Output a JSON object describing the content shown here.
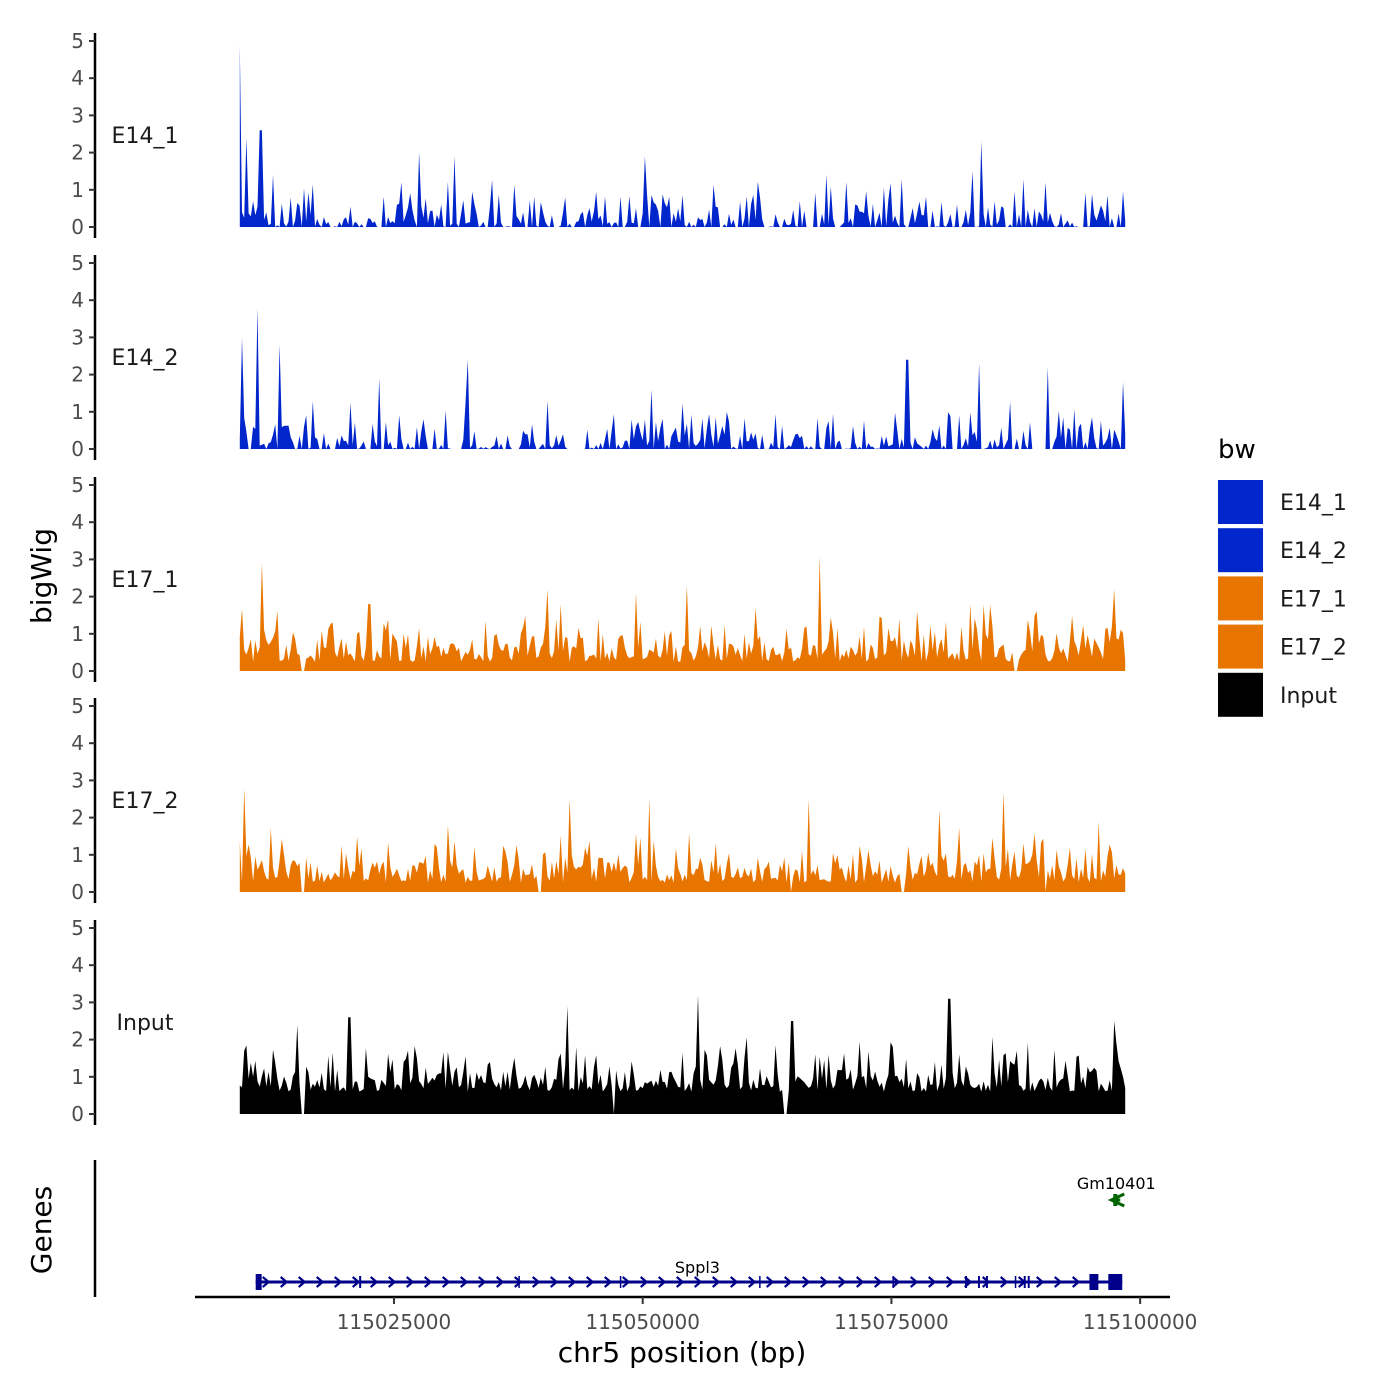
{
  "chart_data": {
    "type": "area",
    "title": "",
    "xlabel": "chr5 position (bp)",
    "ylabel": "bigWig",
    "genes_label": "Genes",
    "xlim": [
      115005000,
      115103000
    ],
    "data_x_range": [
      115009500,
      115098500
    ],
    "x_ticks": [
      115025000,
      115050000,
      115075000,
      115100000
    ],
    "x_tick_labels": [
      "115025000",
      "115050000",
      "115075000",
      "115100000"
    ],
    "ylim": [
      0,
      5
    ],
    "y_ticks": [
      0,
      1,
      2,
      3,
      4,
      5
    ],
    "y_tick_labels": [
      "0",
      "1",
      "2",
      "3",
      "4",
      "5"
    ],
    "legend": {
      "title": "bw",
      "placement": "right",
      "entries": [
        {
          "name": "E14_1",
          "color": "#0026cc"
        },
        {
          "name": "E14_2",
          "color": "#0026cc"
        },
        {
          "name": "E17_1",
          "color": "#e87500"
        },
        {
          "name": "E17_2",
          "color": "#e87500"
        },
        {
          "name": "Input",
          "color": "#000000"
        }
      ]
    },
    "series": [
      {
        "name": "E14_1",
        "color": "#0026cc",
        "n_bins": 400,
        "peaks": [
          {
            "x": 115009550,
            "y": 4.9
          },
          {
            "x": 115010100,
            "y": 2.4
          },
          {
            "x": 115011600,
            "y": 2.6
          },
          {
            "x": 115012800,
            "y": 1.4
          },
          {
            "x": 115027500,
            "y": 2.0
          },
          {
            "x": 115031000,
            "y": 1.9
          },
          {
            "x": 115050200,
            "y": 1.9
          },
          {
            "x": 115068500,
            "y": 1.4
          },
          {
            "x": 115083200,
            "y": 1.5
          },
          {
            "x": 115084000,
            "y": 2.3
          },
          {
            "x": 115090500,
            "y": 1.2
          }
        ],
        "gaps": [
          [
            115015700,
            115015900
          ],
          [
            115058300,
            115058500
          ]
        ]
      },
      {
        "name": "E14_2",
        "color": "#0026cc",
        "n_bins": 400,
        "peaks": [
          {
            "x": 115009700,
            "y": 3.0
          },
          {
            "x": 115011200,
            "y": 3.8
          },
          {
            "x": 115013500,
            "y": 2.8
          },
          {
            "x": 115023600,
            "y": 1.9
          },
          {
            "x": 115032500,
            "y": 2.4
          },
          {
            "x": 115050800,
            "y": 1.6
          },
          {
            "x": 115076600,
            "y": 2.4
          },
          {
            "x": 115083800,
            "y": 2.3
          },
          {
            "x": 115090800,
            "y": 2.2
          },
          {
            "x": 115098200,
            "y": 1.8
          }
        ],
        "gaps": [
          [
            115036800,
            115037600
          ],
          [
            115043000,
            115043300
          ],
          [
            115089000,
            115090600
          ]
        ]
      },
      {
        "name": "E17_1",
        "color": "#e87500",
        "n_bins": 400,
        "peaks": [
          {
            "x": 115011800,
            "y": 2.9
          },
          {
            "x": 115022500,
            "y": 1.8
          },
          {
            "x": 115040500,
            "y": 2.2
          },
          {
            "x": 115049300,
            "y": 2.1
          },
          {
            "x": 115054500,
            "y": 2.3
          },
          {
            "x": 115067800,
            "y": 3.1
          },
          {
            "x": 115083000,
            "y": 1.8
          },
          {
            "x": 115097400,
            "y": 2.2
          }
        ],
        "gaps": [
          [
            115015600,
            115016000
          ],
          [
            115087300,
            115087700
          ]
        ]
      },
      {
        "name": "E17_2",
        "color": "#e87500",
        "n_bins": 400,
        "peaks": [
          {
            "x": 115009900,
            "y": 2.8
          },
          {
            "x": 115030500,
            "y": 1.8
          },
          {
            "x": 115042700,
            "y": 2.5
          },
          {
            "x": 115050700,
            "y": 2.5
          },
          {
            "x": 115066700,
            "y": 2.5
          },
          {
            "x": 115079800,
            "y": 2.2
          },
          {
            "x": 115086200,
            "y": 2.7
          },
          {
            "x": 115095800,
            "y": 1.9
          }
        ],
        "gaps": [
          [
            115015600,
            115016000
          ],
          [
            115039500,
            115039800
          ],
          [
            115064700,
            115065100
          ],
          [
            115076000,
            115076300
          ],
          [
            115090300,
            115090600
          ]
        ]
      },
      {
        "name": "Input",
        "color": "#000000",
        "n_bins": 400,
        "peaks": [
          {
            "x": 115015200,
            "y": 2.4
          },
          {
            "x": 115020500,
            "y": 2.6
          },
          {
            "x": 115042500,
            "y": 2.9
          },
          {
            "x": 115055500,
            "y": 3.2
          },
          {
            "x": 115065000,
            "y": 2.5
          },
          {
            "x": 115080800,
            "y": 3.1
          },
          {
            "x": 115097400,
            "y": 2.5
          }
        ],
        "gaps": [
          [
            115015600,
            115016000
          ],
          [
            115046900,
            115047200
          ],
          [
            115064200,
            115064600
          ]
        ]
      }
    ],
    "genes": [
      {
        "name": "Sppl3",
        "strand": "+",
        "color": "#00008b",
        "start": 115011100,
        "end": 115098200,
        "label_x": 115055500,
        "exons": [
          [
            115011100,
            115011700
          ],
          [
            115021500,
            115021700
          ],
          [
            115037500,
            115037600
          ],
          [
            115047700,
            115047800
          ],
          [
            115061700,
            115061800
          ],
          [
            115075100,
            115075200
          ],
          [
            115082400,
            115082600
          ],
          [
            115083700,
            115083900
          ],
          [
            115084500,
            115084700
          ],
          [
            115087400,
            115087500
          ],
          [
            115088300,
            115088500
          ],
          [
            115088700,
            115088900
          ],
          [
            115094900,
            115095800
          ],
          [
            115096800,
            115098200
          ]
        ]
      },
      {
        "name": "Gm10401",
        "strand": "-",
        "color": "#006400",
        "start": 115097300,
        "end": 115098000,
        "label_x": 115097600,
        "exons": [
          [
            115097300,
            115097700
          ]
        ]
      }
    ]
  }
}
